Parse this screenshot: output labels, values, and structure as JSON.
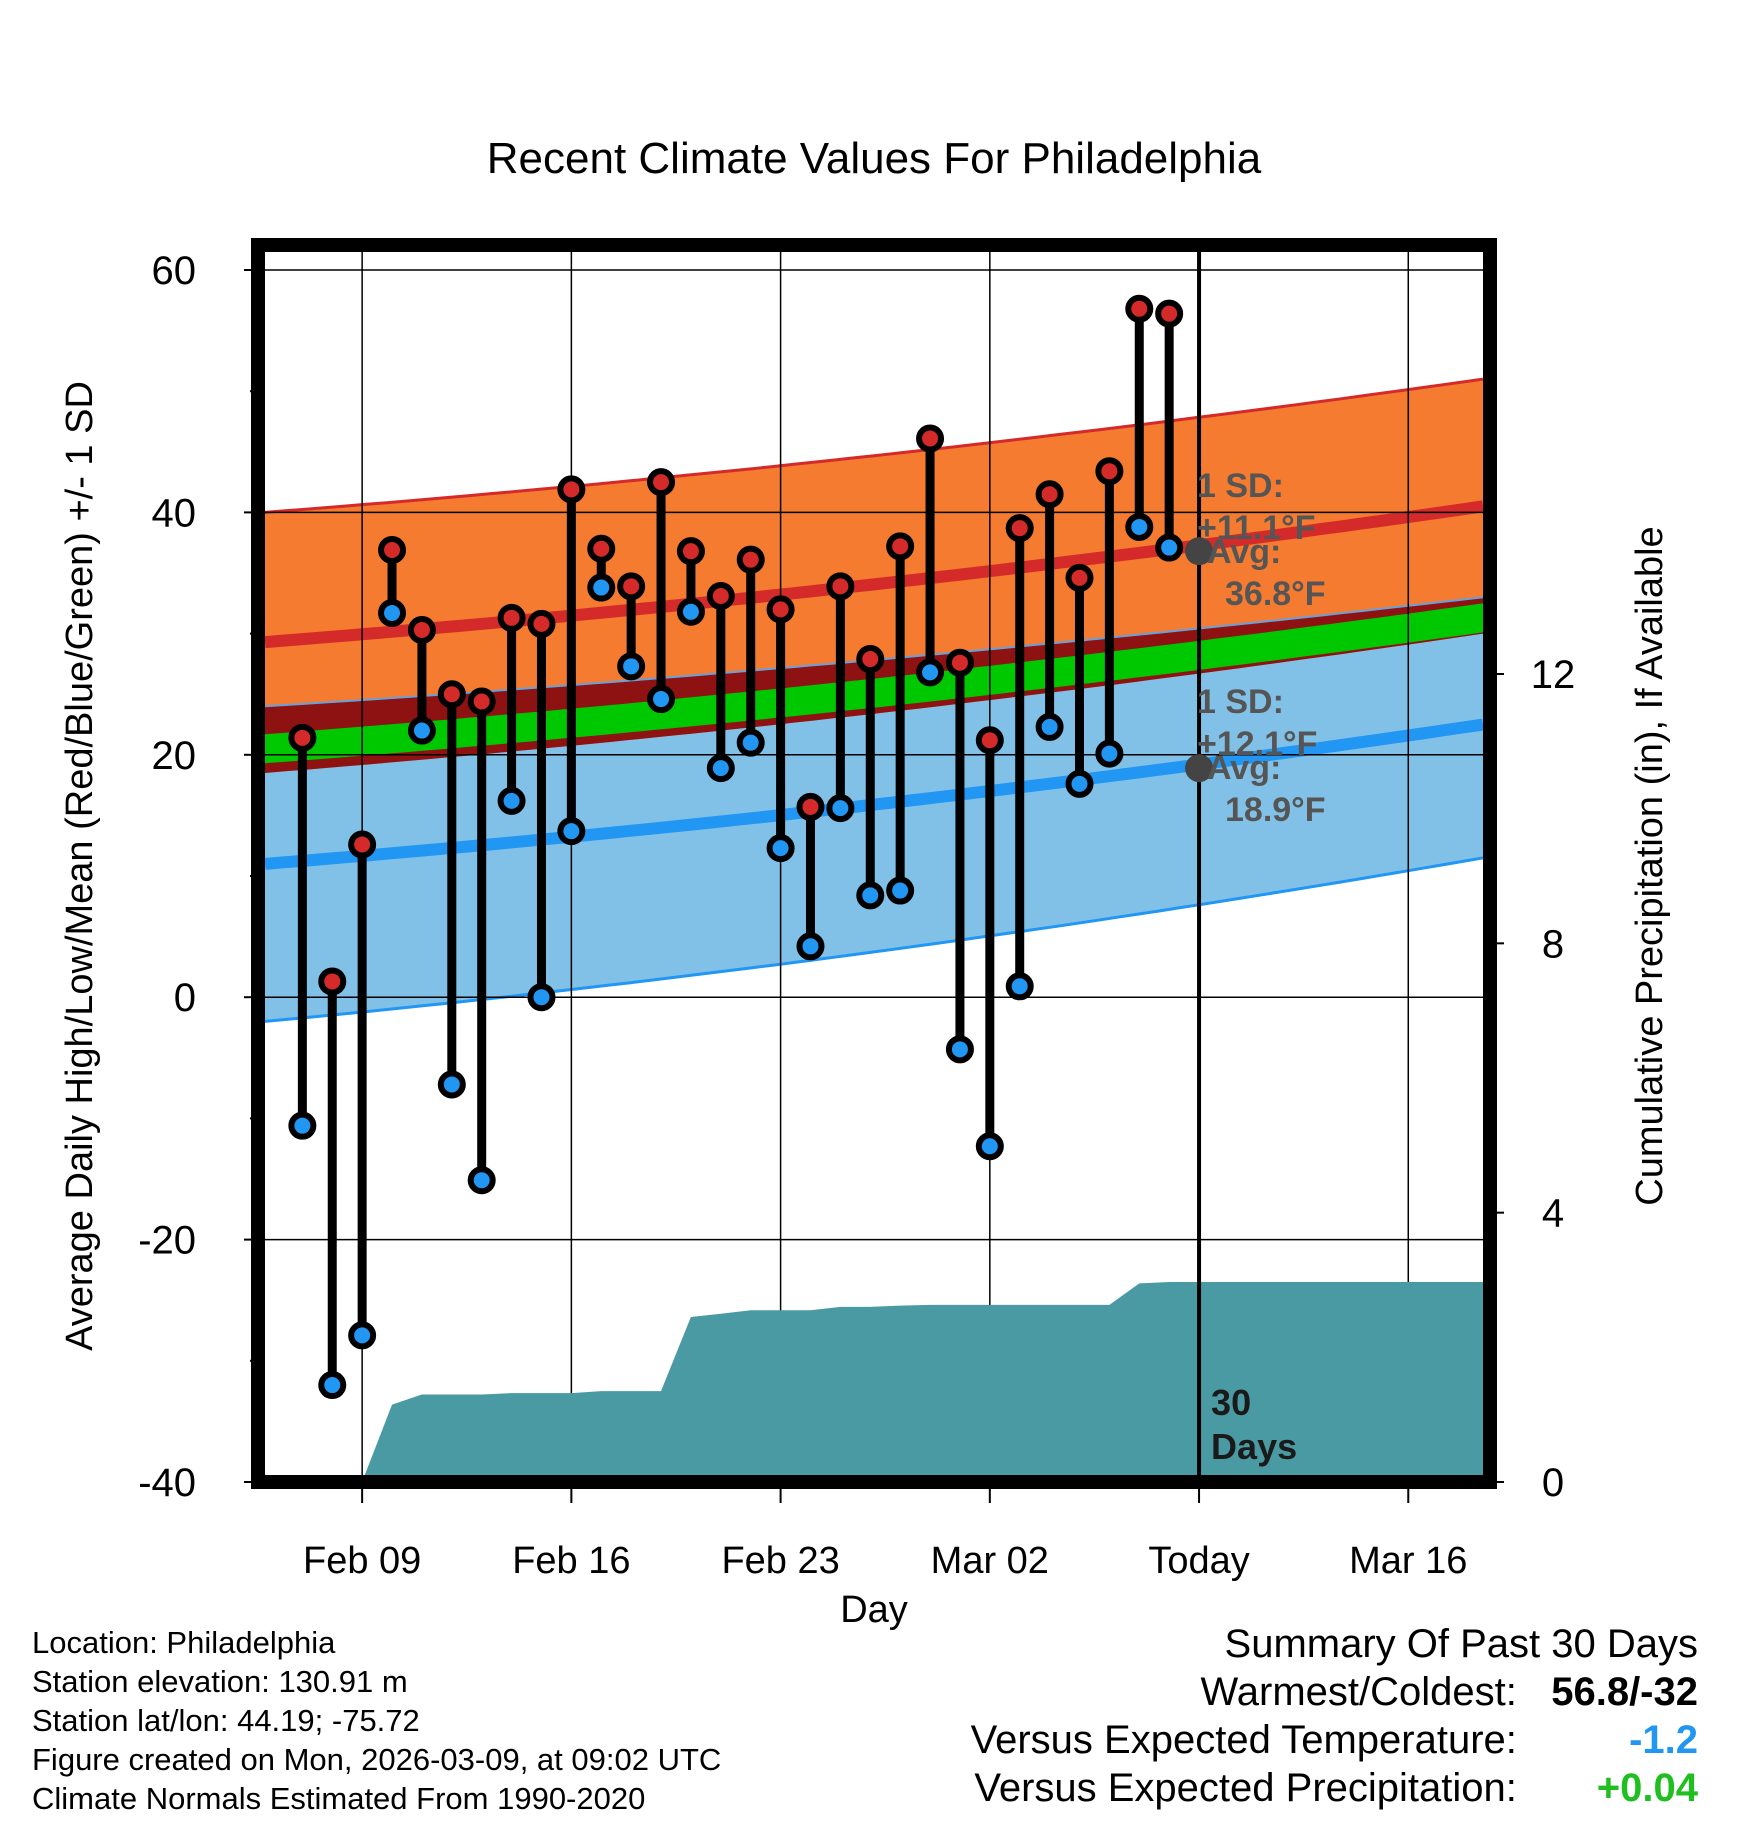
{
  "chart_data": {
    "type": "line",
    "title": "Recent Climate Values For Philadelphia",
    "xlabel": "Day",
    "ylabel": "Average Daily High/Low/Mean (Red/Blue/Green) +/- 1 SD",
    "y2label": "Cumulative Precipitation (in), If Available",
    "ylim": [
      -40,
      60
    ],
    "y2lim": [
      0,
      18
    ],
    "yticks": [
      "60",
      "40",
      "20",
      "0",
      "-20",
      "-40"
    ],
    "y2ticks": [
      "12",
      "8",
      "4",
      "0"
    ],
    "xticks": [
      "Feb 09",
      "Feb 16",
      "Feb 23",
      "Mar 02",
      "Today",
      "Mar 16"
    ],
    "xtick_day_index": [
      4,
      11,
      18,
      25,
      32,
      39
    ],
    "xlim_day_index": [
      0.75,
      41.5
    ],
    "today_index": 32,
    "today_label": "30 Days",
    "grid": true,
    "daily": {
      "day_index": [
        2,
        3,
        4,
        5,
        6,
        7,
        8,
        9,
        10,
        11,
        12,
        13,
        14,
        15,
        16,
        17,
        18,
        19,
        20,
        21,
        22,
        23,
        24,
        25,
        26,
        27,
        28,
        29,
        30,
        31
      ],
      "high": [
        21.4,
        1.3,
        12.6,
        36.9,
        30.3,
        25.0,
        24.4,
        31.3,
        30.8,
        41.9,
        37.0,
        33.9,
        42.5,
        36.8,
        33.1,
        36.1,
        32.0,
        15.7,
        33.9,
        27.9,
        37.2,
        46.1,
        27.6,
        21.2,
        38.7,
        41.5,
        34.6,
        43.4,
        56.8,
        56.4
      ],
      "low": [
        -10.6,
        -32.0,
        -27.9,
        31.7,
        22.0,
        -7.2,
        -15.1,
        16.2,
        0.0,
        13.7,
        33.8,
        27.3,
        24.6,
        31.8,
        18.9,
        21.0,
        12.3,
        4.2,
        15.6,
        8.4,
        8.8,
        26.8,
        -4.3,
        -12.3,
        0.9,
        22.3,
        17.6,
        20.1,
        38.8,
        37.1
      ]
    },
    "normals": {
      "day_index": [
        0.75,
        41.5
      ],
      "high_avg": [
        29.3,
        40.5
      ],
      "high_sd_upper": [
        40.0,
        51.0
      ],
      "high_sd_lower": [
        18.5,
        30.0
      ],
      "mean_avg": [
        20.5,
        31.3
      ],
      "low_avg": [
        11.0,
        22.5
      ],
      "low_sd_upper": [
        24.0,
        33.0
      ],
      "low_sd_lower": [
        -2.0,
        11.5
      ]
    },
    "precipitation_cumulative": {
      "day_index": [
        4,
        5,
        6,
        7,
        8,
        9,
        10,
        11,
        12,
        13,
        14,
        15,
        16,
        17,
        18,
        19,
        20,
        21,
        22,
        23,
        24,
        25,
        26,
        27,
        28,
        29,
        30,
        31,
        41.5
      ],
      "values": [
        0.0,
        1.15,
        1.3,
        1.3,
        1.3,
        1.32,
        1.32,
        1.32,
        1.35,
        1.35,
        1.35,
        2.45,
        2.5,
        2.55,
        2.55,
        2.55,
        2.6,
        2.6,
        2.62,
        2.63,
        2.63,
        2.63,
        2.63,
        2.63,
        2.63,
        2.63,
        2.95,
        2.97,
        2.97
      ]
    },
    "annotations": {
      "high_sd": "1 SD: +11.1°F",
      "high_avg": "Avg: 36.8°F",
      "low_sd": "1 SD: +12.1°F",
      "low_avg": "Avg: 18.9°F"
    },
    "high_avg_today": 36.8,
    "low_avg_today": 18.9
  },
  "info": {
    "location": "Location: Philadelphia",
    "elevation": "Station elevation: 130.91 m",
    "latlon": "Station lat/lon: 44.19; -75.72",
    "created": "Figure created on Mon, 2026-03-09, at 09:02 UTC",
    "normals": "Climate Normals Estimated From 1990-2020"
  },
  "summary": {
    "title": "Summary Of Past 30 Days",
    "warm_cold_label": "Warmest/Coldest:",
    "warm_cold_value": "56.8/-32",
    "temp_label": "Versus Expected Temperature:",
    "temp_value": "-1.2",
    "precip_label": "Versus Expected Precipitation:",
    "precip_value": "+0.04"
  },
  "colors": {
    "high": "#d42a2a",
    "low": "#2196f3",
    "mean": "#00c800",
    "high_band": "#f47b2f",
    "low_band": "#82c1e7",
    "overlap": "#8e1212",
    "precip": "#4a9aa3",
    "temp_diff": "#2196f3",
    "precip_diff": "#1fbf1f"
  }
}
